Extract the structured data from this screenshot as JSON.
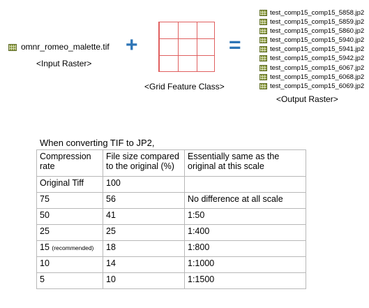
{
  "input": {
    "filename": "omnr_romeo_malette.tif",
    "caption": "<Input Raster>"
  },
  "operators": {
    "plus": "+",
    "equals": "="
  },
  "grid": {
    "caption": "<Grid Feature Class>"
  },
  "output": {
    "files": [
      "test_comp15_comp15_5858.jp2",
      "test_comp15_comp15_5859.jp2",
      "test_comp15_comp15_5860.jp2",
      "test_comp15_comp15_5940.jp2",
      "test_comp15_comp15_5941.jp2",
      "test_comp15_comp15_5942.jp2",
      "test_comp15_comp15_6067.jp2",
      "test_comp15_comp15_6068.jp2",
      "test_comp15_comp15_6069.jp2"
    ],
    "caption": "<Output Raster>"
  },
  "table": {
    "title": "When converting TIF to JP2,",
    "headers": [
      "Compression rate",
      "File size compared to the original (%)",
      "Essentially same as the original at this scale"
    ],
    "rows": [
      {
        "rate": "Original Tiff",
        "note": "",
        "size": "100",
        "scale": ""
      },
      {
        "rate": "75",
        "note": "",
        "size": "56",
        "scale": "No difference at all scale"
      },
      {
        "rate": "50",
        "note": "",
        "size": "41",
        "scale": "1:50"
      },
      {
        "rate": "25",
        "note": "",
        "size": "25",
        "scale": "1:400"
      },
      {
        "rate": "15",
        "note": "(recommended)",
        "size": "18",
        "scale": "1:800"
      },
      {
        "rate": "10",
        "note": "",
        "size": "14",
        "scale": "1:1000"
      },
      {
        "rate": "5",
        "note": "",
        "size": "10",
        "scale": "1:1500"
      }
    ]
  },
  "colors": {
    "operator": "#2e75b6",
    "grid_line": "#e06060",
    "raster_icon": "#8a9a3c"
  },
  "icons": {
    "raster": "raster-grid-icon"
  }
}
